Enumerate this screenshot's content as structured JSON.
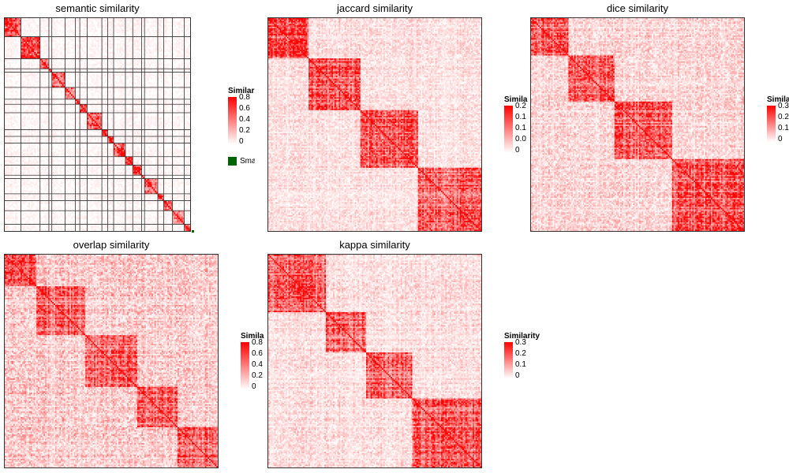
{
  "chart_data": [
    {
      "type": "heatmap",
      "title": "semantic similarity",
      "legend": {
        "title": "Similarity",
        "ticks": [
          "0.8",
          "0.6",
          "0.4",
          "0.2",
          "0"
        ],
        "extra_label": "Small clusters",
        "extra_color": "#006400"
      },
      "color_scale": {
        "low": "#ffffff",
        "high": "#ff0000",
        "range": [
          0,
          0.8
        ]
      },
      "blocks": [
        11,
        13,
        6,
        2,
        9,
        7,
        3,
        5,
        10,
        4,
        4,
        8,
        5,
        6,
        2,
        9,
        4,
        6,
        8,
        4
      ],
      "within_block_mean": 0.55,
      "between_block_mean": 0.04,
      "gridlines": true
    },
    {
      "type": "heatmap",
      "title": "jaccard similarity",
      "legend": {
        "title": "Similarity",
        "ticks": [
          "0.2",
          "0.1",
          "0.1",
          "0.0",
          "0"
        ]
      },
      "color_scale": {
        "low": "#ffffff",
        "high": "#ff0000",
        "range": [
          0,
          0.2
        ]
      },
      "blocks": [
        28,
        36,
        40,
        44
      ],
      "within_block_mean": 0.14,
      "between_block_mean": 0.03,
      "gridlines": false
    },
    {
      "type": "heatmap",
      "title": "dice similarity",
      "legend": {
        "title": "Similarity",
        "ticks": [
          "0.3",
          "0.2",
          "0.1",
          "0"
        ]
      },
      "color_scale": {
        "low": "#ffffff",
        "high": "#ff0000",
        "range": [
          0,
          0.3
        ]
      },
      "blocks": [
        26,
        32,
        40,
        50
      ],
      "within_block_mean": 0.2,
      "between_block_mean": 0.06,
      "gridlines": false
    },
    {
      "type": "heatmap",
      "title": "overlap similarity",
      "legend": {
        "title": "Similarity",
        "ticks": [
          "0.8",
          "0.6",
          "0.4",
          "0.2",
          "0"
        ]
      },
      "color_scale": {
        "low": "#ffffff",
        "high": "#ff0000",
        "range": [
          0,
          0.8
        ]
      },
      "blocks": [
        22,
        34,
        36,
        28,
        28
      ],
      "within_block_mean": 0.5,
      "between_block_mean": 0.2,
      "gridlines": false
    },
    {
      "type": "heatmap",
      "title": "kappa similarity",
      "legend": {
        "title": "Similarity",
        "ticks": [
          "0.3",
          "0.2",
          "0.1",
          "0"
        ]
      },
      "color_scale": {
        "low": "#ffffff",
        "high": "#ff0000",
        "range": [
          0,
          0.3
        ]
      },
      "blocks": [
        40,
        28,
        32,
        48
      ],
      "within_block_mean": 0.2,
      "between_block_mean": 0.05,
      "gridlines": false
    }
  ]
}
